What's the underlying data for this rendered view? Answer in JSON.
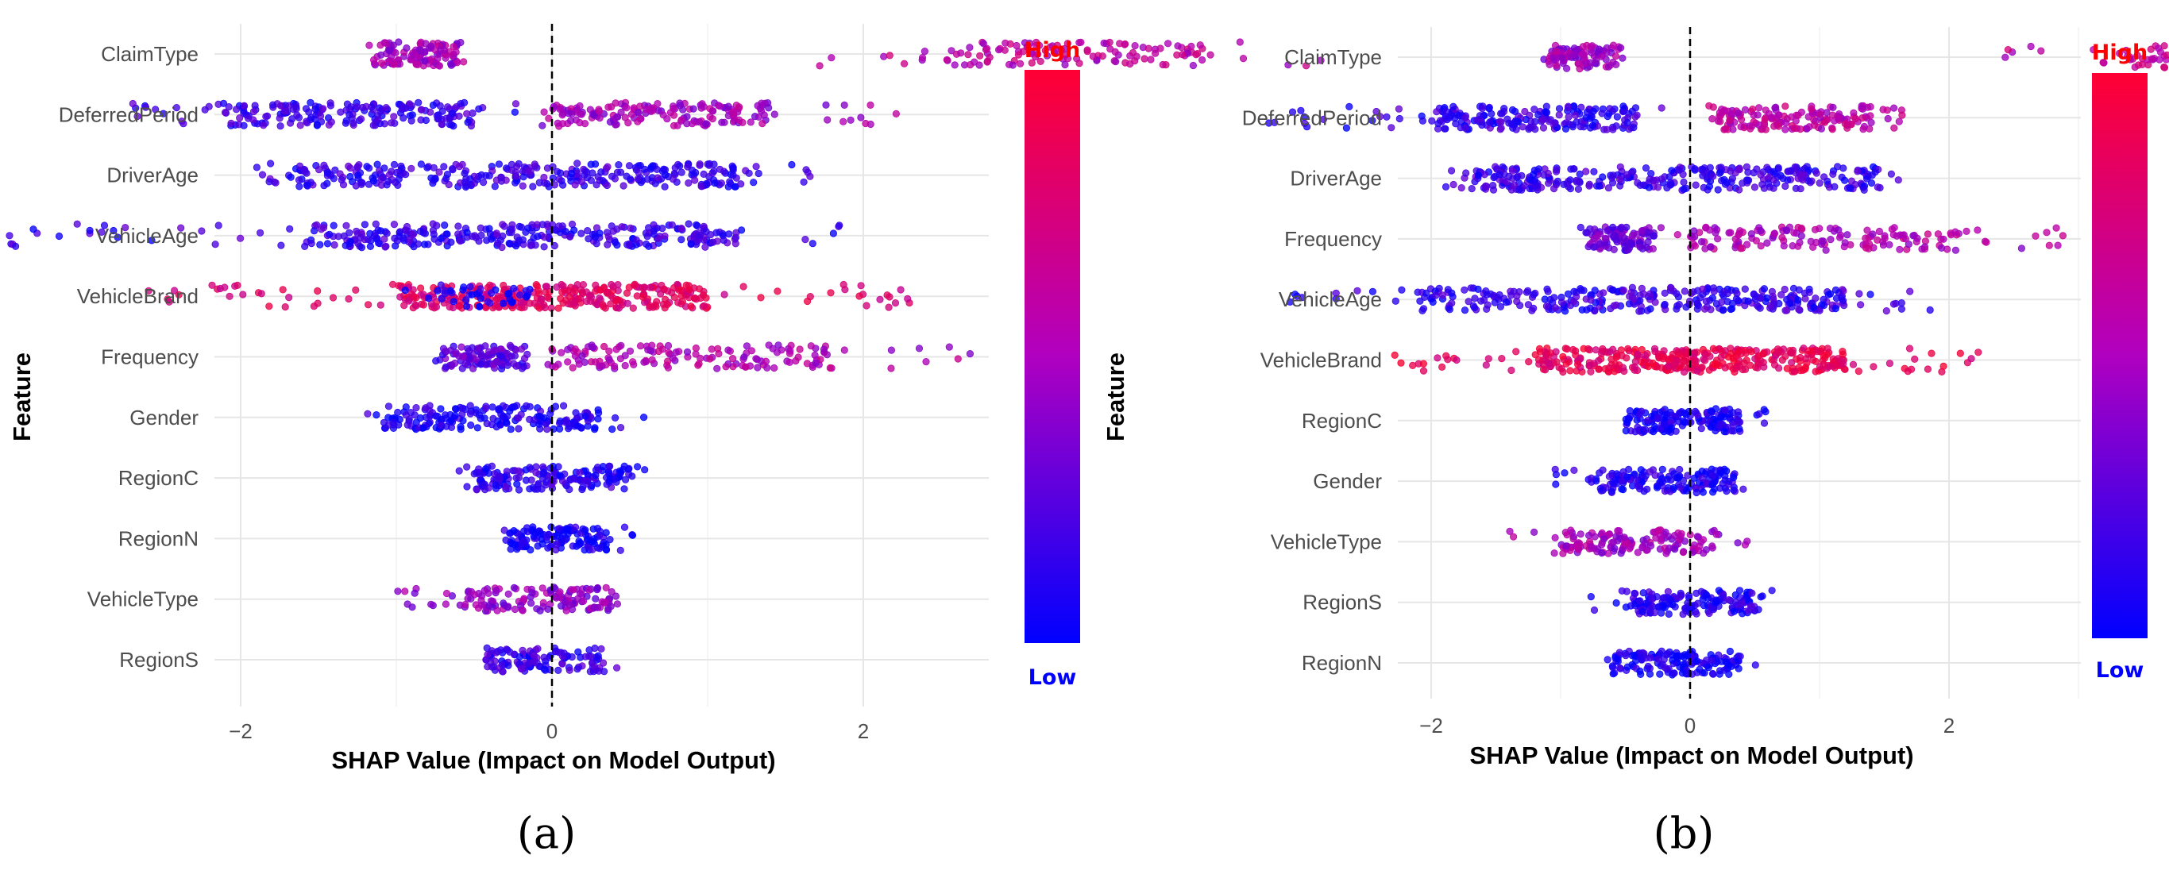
{
  "chart_data": [
    {
      "type": "scatter",
      "panel_label": "(a)",
      "xlabel": "SHAP Value (Impact on Model Output)",
      "ylabel": "Feature",
      "xticks": [
        -2,
        0,
        2
      ],
      "xlim": [
        -4,
        5.6
      ],
      "grid": true,
      "legend": {
        "high": "High",
        "low": "Low",
        "placement": "right"
      },
      "features": [
        "ClaimType",
        "DeferredPeriod",
        "DriverAge",
        "VehicleAge",
        "VehicleBrand",
        "Frequency",
        "Gender",
        "RegionC",
        "RegionN",
        "VehicleType",
        "RegionS"
      ],
      "series": [
        {
          "feature": "ClaimType",
          "clusters": [
            {
              "min": -1.2,
              "max": -0.5,
              "core_min": -1.15,
              "core_max": -0.6,
              "color": 0.45,
              "n": 110
            },
            {
              "min": 1.5,
              "max": 5.0,
              "core_min": 2.5,
              "core_max": 4.2,
              "color": 0.55,
              "n": 130
            }
          ]
        },
        {
          "feature": "DeferredPeriod",
          "clusters": [
            {
              "min": -2.7,
              "max": -0.2,
              "core_min": -2.1,
              "core_max": -0.5,
              "color": 0.15,
              "n": 200
            },
            {
              "min": -0.1,
              "max": 2.3,
              "core_min": 0.0,
              "core_max": 1.4,
              "color": 0.45,
              "n": 170
            }
          ]
        },
        {
          "feature": "DriverAge",
          "clusters": [
            {
              "min": -1.95,
              "max": 1.85,
              "core_min": -1.7,
              "core_max": 1.2,
              "color": 0.15,
              "n": 320
            }
          ]
        },
        {
          "feature": "VehicleAge",
          "clusters": [
            {
              "min": -3.5,
              "max": 1.9,
              "core_min": -1.6,
              "core_max": 1.2,
              "color": 0.15,
              "n": 320
            }
          ]
        },
        {
          "feature": "VehicleBrand",
          "clusters": [
            {
              "min": -2.6,
              "max": 2.3,
              "core_min": -1.0,
              "core_max": 1.0,
              "color": 0.75,
              "n": 360
            },
            {
              "min": -1.0,
              "max": 0.0,
              "core_min": -0.8,
              "core_max": -0.1,
              "color": 0.05,
              "n": 40
            }
          ]
        },
        {
          "feature": "Frequency",
          "clusters": [
            {
              "min": -0.75,
              "max": -0.1,
              "core_min": -0.7,
              "core_max": -0.15,
              "color": 0.25,
              "n": 110
            },
            {
              "min": -0.1,
              "max": 2.8,
              "core_min": 0.0,
              "core_max": 1.8,
              "color": 0.5,
              "n": 150
            }
          ]
        },
        {
          "feature": "Gender",
          "clusters": [
            {
              "min": -1.2,
              "max": 0.6,
              "core_min": -1.1,
              "core_max": 0.3,
              "color": 0.08,
              "n": 190
            }
          ]
        },
        {
          "feature": "RegionC",
          "clusters": [
            {
              "min": -0.6,
              "max": 0.6,
              "core_min": -0.5,
              "core_max": 0.5,
              "color": 0.12,
              "n": 170
            }
          ]
        },
        {
          "feature": "RegionN",
          "clusters": [
            {
              "min": -0.35,
              "max": 0.55,
              "core_min": -0.3,
              "core_max": 0.35,
              "color": 0.05,
              "n": 130
            }
          ]
        },
        {
          "feature": "VehicleType",
          "clusters": [
            {
              "min": -1.0,
              "max": 0.45,
              "core_min": -0.6,
              "core_max": 0.4,
              "color": 0.4,
              "n": 140
            }
          ]
        },
        {
          "feature": "RegionS",
          "clusters": [
            {
              "min": -0.5,
              "max": 0.45,
              "core_min": -0.45,
              "core_max": 0.35,
              "color": 0.15,
              "n": 120
            }
          ]
        }
      ]
    },
    {
      "type": "scatter",
      "panel_label": "(b)",
      "xlabel": "SHAP Value (Impact on Model Output)",
      "ylabel": "Feature",
      "xticks": [
        -2,
        0,
        2
      ],
      "xlim": [
        -4,
        6.2
      ],
      "grid": true,
      "legend": {
        "high": "High",
        "low": "Low",
        "placement": "right"
      },
      "features": [
        "ClaimType",
        "DeferredPeriod",
        "DriverAge",
        "Frequency",
        "VehicleAge",
        "VehicleBrand",
        "RegionC",
        "Gender",
        "VehicleType",
        "RegionS",
        "RegionN"
      ],
      "series": [
        {
          "feature": "ClaimType",
          "clusters": [
            {
              "min": -1.15,
              "max": -0.5,
              "core_min": -1.1,
              "core_max": -0.55,
              "color": 0.45,
              "n": 100
            },
            {
              "min": 2.4,
              "max": 5.0,
              "core_min": 3.3,
              "core_max": 4.8,
              "color": 0.58,
              "n": 130
            }
          ]
        },
        {
          "feature": "DeferredPeriod",
          "clusters": [
            {
              "min": -3.3,
              "max": -0.2,
              "core_min": -2.0,
              "core_max": -0.4,
              "color": 0.15,
              "n": 210
            },
            {
              "min": 0.1,
              "max": 1.7,
              "core_min": 0.2,
              "core_max": 1.4,
              "color": 0.55,
              "n": 160
            }
          ]
        },
        {
          "feature": "DriverAge",
          "clusters": [
            {
              "min": -1.9,
              "max": 1.65,
              "core_min": -1.7,
              "core_max": 1.5,
              "color": 0.15,
              "n": 320
            }
          ]
        },
        {
          "feature": "Frequency",
          "clusters": [
            {
              "min": -0.85,
              "max": -0.2,
              "core_min": -0.8,
              "core_max": -0.25,
              "color": 0.3,
              "n": 100
            },
            {
              "min": -0.15,
              "max": 2.9,
              "core_min": 0.0,
              "core_max": 2.1,
              "color": 0.5,
              "n": 150
            }
          ]
        },
        {
          "feature": "VehicleAge",
          "clusters": [
            {
              "min": -3.4,
              "max": 2.0,
              "core_min": -2.1,
              "core_max": 1.2,
              "color": 0.15,
              "n": 320
            }
          ]
        },
        {
          "feature": "VehicleBrand",
          "clusters": [
            {
              "min": -2.3,
              "max": 2.25,
              "core_min": -1.2,
              "core_max": 1.2,
              "color": 0.8,
              "n": 380
            }
          ]
        },
        {
          "feature": "RegionC",
          "clusters": [
            {
              "min": -0.55,
              "max": 0.6,
              "core_min": -0.5,
              "core_max": 0.4,
              "color": 0.06,
              "n": 160
            }
          ]
        },
        {
          "feature": "Gender",
          "clusters": [
            {
              "min": -1.1,
              "max": 0.45,
              "core_min": -0.7,
              "core_max": 0.35,
              "color": 0.08,
              "n": 160
            }
          ]
        },
        {
          "feature": "VehicleType",
          "clusters": [
            {
              "min": -1.55,
              "max": 0.45,
              "core_min": -1.0,
              "core_max": 0.2,
              "color": 0.45,
              "n": 150
            }
          ]
        },
        {
          "feature": "RegionS",
          "clusters": [
            {
              "min": -0.8,
              "max": 0.7,
              "core_min": -0.5,
              "core_max": 0.5,
              "color": 0.1,
              "n": 160
            }
          ]
        },
        {
          "feature": "RegionN",
          "clusters": [
            {
              "min": -0.7,
              "max": 0.65,
              "core_min": -0.6,
              "core_max": 0.4,
              "color": 0.06,
              "n": 150
            }
          ]
        }
      ]
    }
  ],
  "colors": {
    "low": "#0000ff",
    "high": "#ff0000",
    "mid": "#b400b4"
  }
}
